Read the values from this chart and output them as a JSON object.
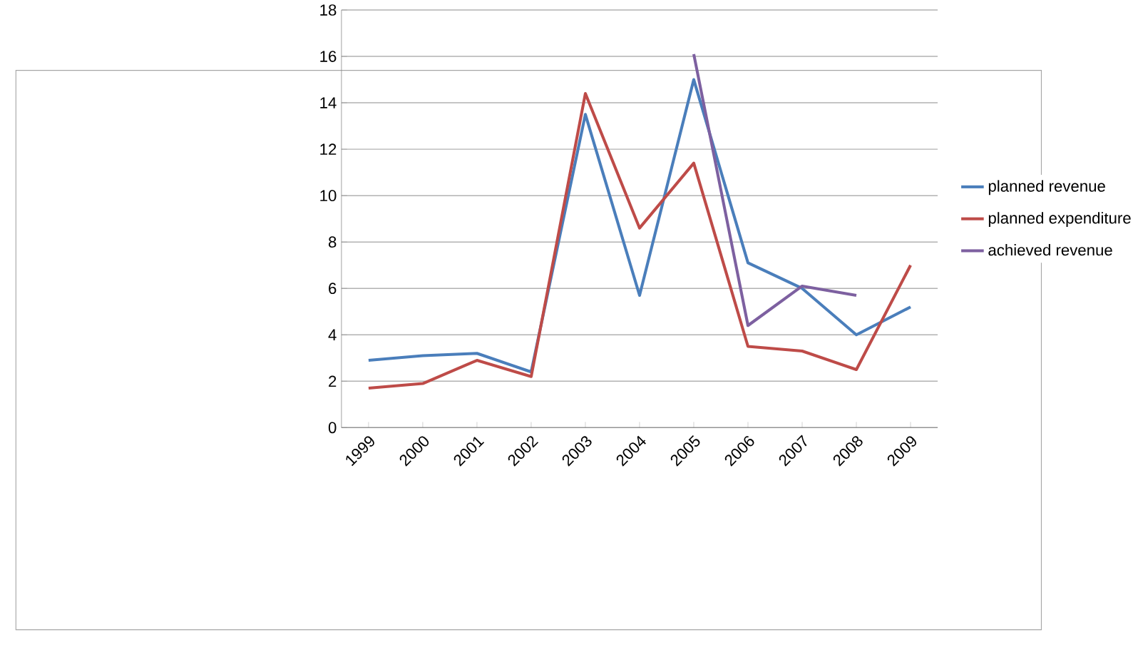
{
  "chart_data": {
    "type": "line",
    "categories": [
      "1999",
      "2000",
      "2001",
      "2002",
      "2003",
      "2004",
      "2005",
      "2006",
      "2007",
      "2008",
      "2009"
    ],
    "series": [
      {
        "name": "planned revenue",
        "color": "#4a7ebb",
        "values": [
          2.9,
          3.1,
          3.2,
          2.4,
          13.5,
          5.7,
          15.0,
          7.1,
          6.0,
          4.0,
          5.2
        ]
      },
      {
        "name": "planned expenditure",
        "color": "#be4b48",
        "values": [
          1.7,
          1.9,
          2.9,
          2.2,
          14.4,
          8.6,
          11.4,
          3.5,
          3.3,
          2.5,
          7.0
        ]
      },
      {
        "name": "achieved revenue",
        "color": "#7d60a0",
        "values": [
          null,
          null,
          null,
          null,
          null,
          null,
          16.1,
          4.4,
          6.1,
          5.7,
          null
        ]
      }
    ],
    "ylim": [
      0,
      18
    ],
    "yticks": [
      0,
      2,
      4,
      6,
      8,
      10,
      12,
      14,
      16,
      18
    ],
    "grid": "y",
    "legend": "right",
    "marker": "none",
    "line_style": "solid"
  }
}
